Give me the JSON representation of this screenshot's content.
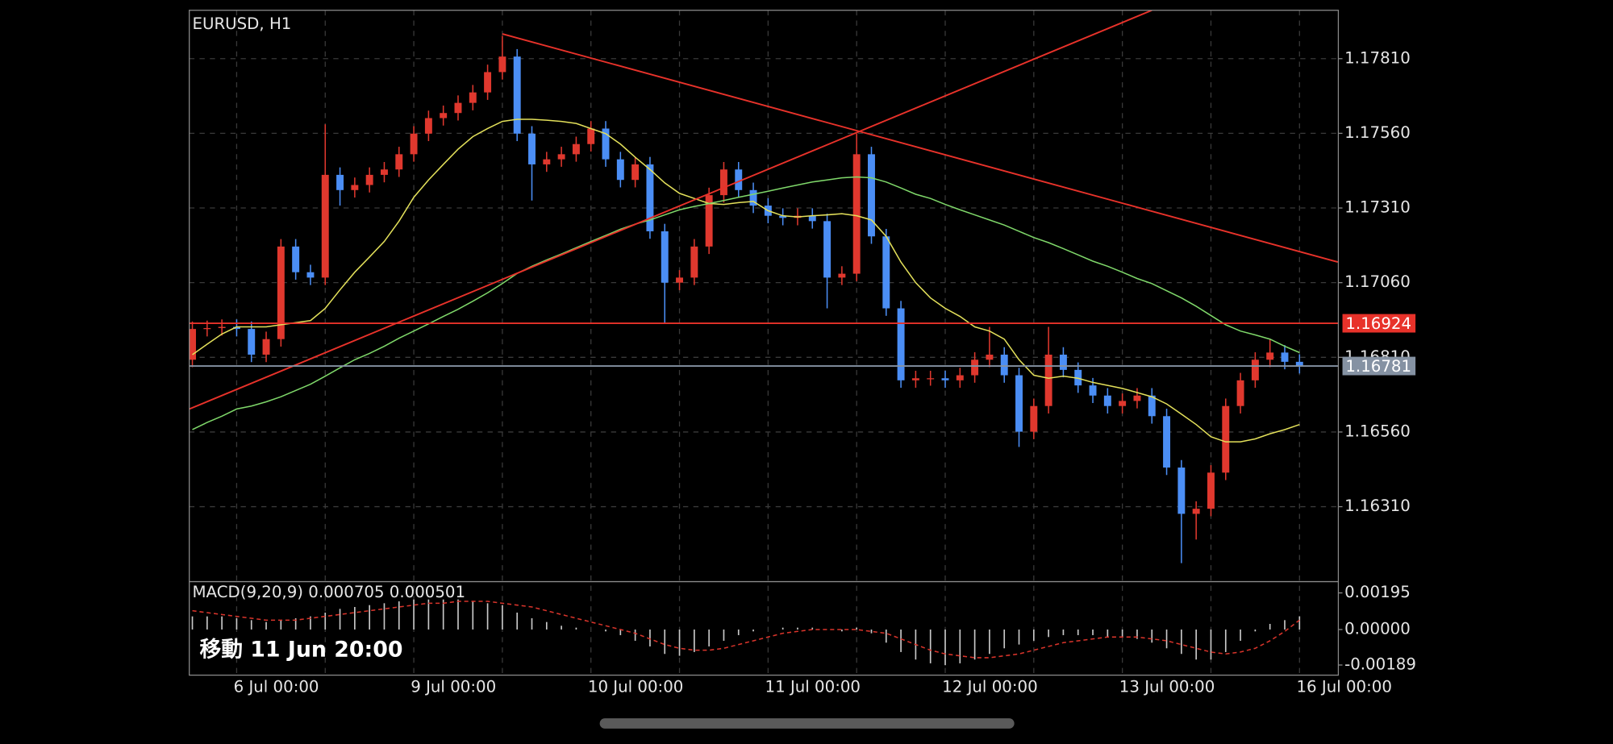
{
  "chart_data": [
    {
      "type": "candlestick",
      "title": "EURUSD, H1",
      "categories": [
        null,
        null,
        null,
        "6 Jul 00:00",
        null,
        null,
        null,
        null,
        null,
        null,
        null,
        null,
        null,
        null,
        null,
        "9 Jul 00:00",
        null,
        null,
        null,
        null,
        null,
        null,
        null,
        null,
        null,
        null,
        null,
        "10 Jul 00:00",
        null,
        null,
        null,
        null,
        null,
        null,
        null,
        null,
        null,
        null,
        null,
        "11 Jul 00:00",
        null,
        null,
        null,
        null,
        null,
        null,
        null,
        null,
        null,
        null,
        null,
        "12 Jul 00:00",
        null,
        null,
        null,
        null,
        null,
        null,
        null,
        null,
        null,
        null,
        null,
        "13 Jul 00:00",
        null,
        null,
        null,
        null,
        null,
        null,
        null,
        null,
        null,
        null,
        null,
        "16 Jul 00:00"
      ],
      "open": [
        1.16802,
        1.16905,
        1.16908,
        1.16912,
        1.16905,
        1.16819,
        1.16871,
        1.17181,
        1.17095,
        1.17077,
        1.17421,
        1.1737,
        1.17387,
        1.17421,
        1.17439,
        1.1749,
        1.17559,
        1.17611,
        1.17628,
        1.17662,
        1.17697,
        1.17765,
        1.17817,
        1.17559,
        1.17456,
        1.17473,
        1.1749,
        1.17524,
        1.17576,
        1.17473,
        1.17404,
        1.17456,
        1.17232,
        1.1706,
        1.17077,
        1.17181,
        1.17353,
        1.17439,
        1.1737,
        1.17318,
        1.17284,
        1.17277,
        1.17284,
        1.17266,
        1.17077,
        1.1709,
        1.1749,
        1.17215,
        1.16974,
        1.16733,
        1.1674,
        1.1674,
        1.16733,
        1.1675,
        1.16802,
        1.16819,
        1.1675,
        1.16561,
        1.16647,
        1.16819,
        1.16768,
        1.16716,
        1.16682,
        1.16647,
        1.16664,
        1.16682,
        1.16613,
        1.16441,
        1.16286,
        1.16303,
        1.16424,
        1.16647,
        1.16733,
        1.16802,
        1.16826,
        1.16795
      ],
      "high": [
        1.1693,
        1.16933,
        1.16937,
        1.16937,
        1.1693,
        1.16896,
        1.17206,
        1.17206,
        1.1712,
        1.1759,
        1.17446,
        1.17412,
        1.17446,
        1.17464,
        1.17515,
        1.17584,
        1.17636,
        1.17653,
        1.17687,
        1.17722,
        1.1779,
        1.17886,
        1.17842,
        1.17584,
        1.17498,
        1.17515,
        1.17549,
        1.17601,
        1.17601,
        1.17498,
        1.17481,
        1.17481,
        1.17257,
        1.17102,
        1.17206,
        1.17378,
        1.17464,
        1.17464,
        1.17395,
        1.17343,
        1.17309,
        1.17309,
        1.17309,
        1.17291,
        1.17115,
        1.17559,
        1.17515,
        1.1724,
        1.16999,
        1.16765,
        1.16765,
        1.16765,
        1.16775,
        1.16827,
        1.16912,
        1.16844,
        1.16775,
        1.16672,
        1.16912,
        1.16844,
        1.16793,
        1.16741,
        1.16707,
        1.16689,
        1.16707,
        1.16707,
        1.16638,
        1.16466,
        1.16328,
        1.16449,
        1.16672,
        1.16758,
        1.16827,
        1.1687,
        1.16851,
        1.1682
      ],
      "low": [
        1.16777,
        1.1688,
        1.16883,
        1.1688,
        1.16794,
        1.16794,
        1.16846,
        1.1707,
        1.17052,
        1.17052,
        1.17318,
        1.17345,
        1.17362,
        1.17396,
        1.17414,
        1.17465,
        1.17534,
        1.17586,
        1.17603,
        1.17637,
        1.17672,
        1.1774,
        1.17534,
        1.17335,
        1.17431,
        1.17448,
        1.17465,
        1.17499,
        1.17448,
        1.17379,
        1.17379,
        1.17207,
        1.16922,
        1.17035,
        1.17052,
        1.17156,
        1.17328,
        1.17345,
        1.17293,
        1.17259,
        1.17252,
        1.17252,
        1.17241,
        1.16974,
        1.17052,
        1.17065,
        1.1719,
        1.16949,
        1.16708,
        1.16708,
        1.16715,
        1.16708,
        1.16708,
        1.16725,
        1.16777,
        1.16725,
        1.1651,
        1.16536,
        1.16622,
        1.16743,
        1.16691,
        1.16657,
        1.16622,
        1.16622,
        1.16639,
        1.16588,
        1.16416,
        1.16121,
        1.162,
        1.16278,
        1.16399,
        1.16622,
        1.16708,
        1.16777,
        1.1677,
        1.16756
      ],
      "close": [
        1.16905,
        1.16908,
        1.16912,
        1.16905,
        1.16819,
        1.16871,
        1.17181,
        1.17095,
        1.17077,
        1.17421,
        1.1737,
        1.17387,
        1.17421,
        1.17439,
        1.1749,
        1.17559,
        1.17611,
        1.17628,
        1.17662,
        1.17697,
        1.17765,
        1.17817,
        1.17559,
        1.17456,
        1.17473,
        1.1749,
        1.17524,
        1.17576,
        1.17473,
        1.17404,
        1.17456,
        1.17232,
        1.1706,
        1.17077,
        1.17181,
        1.17353,
        1.17439,
        1.1737,
        1.17318,
        1.17284,
        1.17277,
        1.17284,
        1.17266,
        1.17077,
        1.1709,
        1.1749,
        1.17215,
        1.16974,
        1.16733,
        1.1674,
        1.1674,
        1.16733,
        1.1675,
        1.16802,
        1.16819,
        1.1675,
        1.16561,
        1.16647,
        1.16819,
        1.16768,
        1.16716,
        1.16682,
        1.16647,
        1.16664,
        1.16682,
        1.16613,
        1.16441,
        1.16286,
        1.16303,
        1.16424,
        1.16647,
        1.16733,
        1.16802,
        1.16826,
        1.16795,
        1.16781
      ],
      "up_color": "#e0382e",
      "down_color": "#4b8ef5",
      "lines": [
        {
          "color": "#e3e05a",
          "values": [
            1.16819,
            1.16854,
            1.16888,
            1.16912,
            1.16912,
            1.16912,
            1.16919,
            1.16926,
            1.16933,
            1.16974,
            1.17036,
            1.17095,
            1.17146,
            1.17198,
            1.17266,
            1.17346,
            1.17404,
            1.17456,
            1.17507,
            1.17549,
            1.17576,
            1.176,
            1.17607,
            1.17607,
            1.17604,
            1.176,
            1.17593,
            1.17576,
            1.17559,
            1.17524,
            1.1748,
            1.17439,
            1.17394,
            1.17359,
            1.17342,
            1.17325,
            1.17322,
            1.17328,
            1.17332,
            1.17301,
            1.17284,
            1.1728,
            1.17284,
            1.17287,
            1.17291,
            1.17284,
            1.1727,
            1.17215,
            1.17129,
            1.1706,
            1.17009,
            1.16974,
            1.16947,
            1.16912,
            1.16898,
            1.16871,
            1.16802,
            1.1675,
            1.1674,
            1.16747,
            1.1674,
            1.16726,
            1.16716,
            1.16706,
            1.16692,
            1.16678,
            1.16654,
            1.1662,
            1.16585,
            1.16544,
            1.16527,
            1.16527,
            1.16537,
            1.16554,
            1.16568,
            1.16585
          ]
        },
        {
          "color": "#7fd86a",
          "values": [
            1.16568,
            1.16592,
            1.16613,
            1.16637,
            1.16647,
            1.16661,
            1.16678,
            1.16699,
            1.1672,
            1.16747,
            1.16775,
            1.16802,
            1.16823,
            1.16847,
            1.16874,
            1.16898,
            1.16922,
            1.16947,
            1.16971,
            1.16998,
            1.17026,
            1.17057,
            1.17091,
            1.17115,
            1.17136,
            1.17156,
            1.17177,
            1.17198,
            1.17218,
            1.17239,
            1.17256,
            1.1727,
            1.17287,
            1.17304,
            1.17315,
            1.17325,
            1.17335,
            1.17346,
            1.17356,
            1.17366,
            1.17377,
            1.17387,
            1.17397,
            1.17404,
            1.17411,
            1.17414,
            1.17411,
            1.17397,
            1.17377,
            1.17356,
            1.17342,
            1.17322,
            1.17304,
            1.17287,
            1.1727,
            1.17253,
            1.17232,
            1.17211,
            1.17194,
            1.17174,
            1.17153,
            1.17132,
            1.17115,
            1.17095,
            1.17074,
            1.17057,
            1.17033,
            1.17009,
            1.16981,
            1.1695,
            1.16919,
            1.16898,
            1.16885,
            1.16871,
            1.16847,
            1.16826
          ]
        }
      ],
      "trendlines": [
        {
          "color": "#e8322a",
          "x": [
            21,
            77.6
          ],
          "y": [
            1.17893,
            1.17129
          ]
        },
        {
          "color": "#e8322a",
          "x": [
            -0.2,
            65
          ],
          "y": [
            1.16637,
            1.17972
          ]
        }
      ],
      "price_lines": [
        {
          "value": 1.16924,
          "label": "1.16924",
          "color": "#e8322a",
          "text_color": "#ffffff"
        },
        {
          "value": 1.16781,
          "label": "1.16781",
          "color": "#8592a3",
          "text_color": "#ffffff"
        }
      ],
      "ylim": [
        1.16059,
        1.17972
      ],
      "yticks": [
        {
          "value": 1.1781,
          "label": "1.17810"
        },
        {
          "value": 1.1756,
          "label": "1.17560"
        },
        {
          "value": 1.1731,
          "label": "1.17310"
        },
        {
          "value": 1.1706,
          "label": "1.17060"
        },
        {
          "value": 1.1681,
          "label": "1.16810"
        },
        {
          "value": 1.1656,
          "label": "1.16560"
        },
        {
          "value": 1.1631,
          "label": "1.16310"
        }
      ],
      "grid": true
    },
    {
      "type": "macd",
      "title": "MACD(9,20,9) 0.000705 0.000501",
      "histogram": [
        0.0007,
        0.0007,
        0.0007,
        0.0006,
        0.0005,
        0.0004,
        0.0005,
        0.0006,
        0.0007,
        0.0009,
        0.0011,
        0.0012,
        0.0013,
        0.0014,
        0.0015,
        0.0016,
        0.0016,
        0.0016,
        0.0016,
        0.0015,
        0.0014,
        0.0013,
        0.0009,
        0.0006,
        0.0004,
        0.0002,
        0.0001,
        0,
        -0.0001,
        -0.0003,
        -0.0006,
        -0.0009,
        -0.0013,
        -0.0014,
        -0.0012,
        -0.0009,
        -0.0006,
        -0.0003,
        -0.0001,
        0,
        0.0001,
        0.0001,
        0.0001,
        0,
        -0.0001,
        0.0001,
        -0.0002,
        -0.0007,
        -0.0012,
        -0.0016,
        -0.0018,
        -0.0019,
        -0.0018,
        -0.0016,
        -0.0013,
        -0.001,
        -0.0008,
        -0.0006,
        -0.0004,
        -0.0003,
        -0.0003,
        -0.0003,
        -0.0004,
        -0.0004,
        -0.0005,
        -0.0007,
        -0.001,
        -0.0013,
        -0.0016,
        -0.0016,
        -0.0012,
        -0.0006,
        -0.0001,
        0.0003,
        0.0005,
        0.000705
      ],
      "signal": [
        0.001,
        0.0009,
        0.0008,
        0.0007,
        0.0006,
        0.0005,
        0.0005,
        0.0005,
        0.0006,
        0.0007,
        0.0008,
        0.0009,
        0.001,
        0.0011,
        0.0012,
        0.0013,
        0.0014,
        0.0014,
        0.0015,
        0.0015,
        0.0015,
        0.0014,
        0.0013,
        0.0012,
        0.001,
        0.0008,
        0.0006,
        0.0004,
        0.0002,
        0,
        -0.0002,
        -0.0005,
        -0.0008,
        -0.001,
        -0.0011,
        -0.0011,
        -0.001,
        -0.0008,
        -0.0006,
        -0.0004,
        -0.0002,
        -0.0001,
        0,
        0,
        0,
        0,
        -0.0001,
        -0.0002,
        -0.0005,
        -0.0008,
        -0.0011,
        -0.0013,
        -0.0014,
        -0.0015,
        -0.0015,
        -0.0014,
        -0.0013,
        -0.0011,
        -0.0009,
        -0.0007,
        -0.0006,
        -0.0005,
        -0.0004,
        -0.0004,
        -0.0004,
        -0.0005,
        -0.0006,
        -0.0008,
        -0.001,
        -0.0012,
        -0.0013,
        -0.0012,
        -0.001,
        -0.0006,
        -0.0001,
        0.000501
      ],
      "hist_color": "#c8c8c8",
      "signal_color": "#d9342b",
      "ylim": [
        -0.00243,
        0.00255
      ],
      "yticks": [
        {
          "value": 0.00195,
          "label": "0.00195"
        },
        {
          "value": 0,
          "label": "0.00000"
        },
        {
          "value": -0.00189,
          "label": "-0.00189"
        }
      ]
    }
  ],
  "overlay_label": "移動 11 Jun 20:00"
}
